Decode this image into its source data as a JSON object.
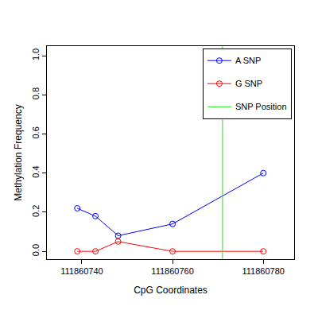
{
  "chart_data": {
    "type": "line",
    "x_label": "CpG Coordinates",
    "y_label": "Methylation Frequency",
    "x": [
      111860739,
      111860743,
      111860748,
      111860760,
      111860780
    ],
    "series": [
      {
        "name": "A SNP",
        "color": "#0000ff",
        "marker": "circle-open",
        "line_style": "solid",
        "values": [
          0.22,
          0.18,
          0.08,
          0.14,
          0.4
        ]
      },
      {
        "name": "G SNP",
        "color": "#ff0000",
        "marker": "circle-open",
        "line_style": "solid",
        "values": [
          0,
          0,
          0.05,
          0,
          0
        ]
      },
      {
        "name": "SNP Position",
        "color": "#00ff00",
        "type": "vline",
        "line_style": "solid",
        "x": [
          111860771
        ]
      }
    ],
    "xlim": [
      111860732.3,
      111860786.8
    ],
    "ylim": [
      -0.04,
      1.049
    ],
    "xticks": [
      111860740,
      111860760,
      111860780
    ],
    "yticks": [
      {
        "value": 0,
        "label": "0.0"
      },
      0.2,
      0.4,
      0.6,
      0.8,
      {
        "value": 1,
        "label": "1.0"
      }
    ],
    "grid": false,
    "legend": "top right"
  }
}
